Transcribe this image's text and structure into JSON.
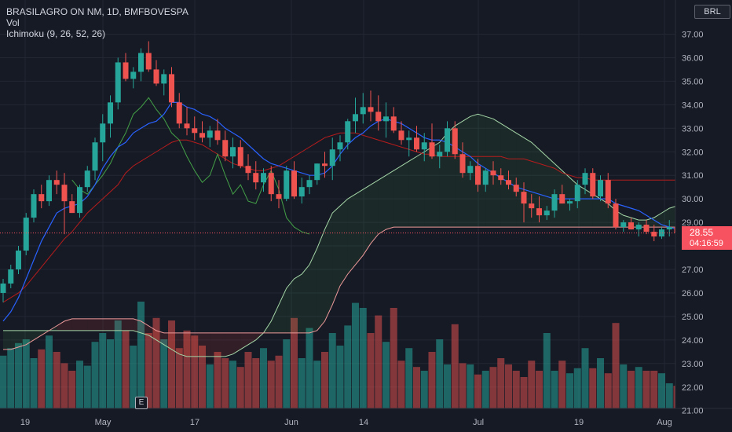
{
  "header": {
    "symbol_line": "BRASILAGRO ON NM, 1D, BMFBOVESPA",
    "indicators": [
      "Vol",
      "Ichimoku (9, 26, 52, 26)"
    ],
    "currency": "BRL"
  },
  "last_price": {
    "value": "28.55",
    "countdown": "04:16:59"
  },
  "earnings_marker": "E",
  "colors": {
    "background": "#161a25",
    "up": "#26a69a",
    "down": "#ef5350",
    "conversion": "#2962ff",
    "base": "#b71c1c",
    "lagging": "#43a047",
    "span_a": "#a5d6a7",
    "span_b": "#ef9a9a"
  },
  "chart_data": {
    "type": "candlestick",
    "y_axis": {
      "min": 21,
      "max": 38,
      "ticks": [
        "37.00",
        "36.00",
        "35.00",
        "34.00",
        "33.00",
        "32.00",
        "31.00",
        "30.00",
        "29.00",
        "28.00",
        "27.00",
        "26.00",
        "25.00",
        "24.00",
        "23.00",
        "22.00",
        "21.00"
      ]
    },
    "x_axis_labels": [
      "19",
      "May",
      "17",
      "Jun",
      "14",
      "Jul",
      "19",
      "Aug"
    ],
    "candles": [
      [
        26.0,
        26.6,
        25.6,
        26.4
      ],
      [
        26.4,
        27.2,
        26.2,
        27.0
      ],
      [
        27.0,
        28.0,
        26.8,
        27.8
      ],
      [
        27.8,
        29.4,
        27.6,
        29.2
      ],
      [
        29.2,
        30.4,
        29.0,
        30.2
      ],
      [
        30.2,
        30.6,
        29.6,
        29.9
      ],
      [
        29.9,
        31.0,
        29.7,
        30.8
      ],
      [
        30.8,
        31.2,
        30.2,
        30.6
      ],
      [
        30.6,
        31.1,
        28.5,
        29.9
      ],
      [
        29.9,
        30.2,
        29.4,
        29.4
      ],
      [
        29.4,
        30.6,
        29.2,
        30.5
      ],
      [
        30.5,
        31.4,
        30.3,
        31.2
      ],
      [
        31.2,
        32.6,
        30.8,
        32.4
      ],
      [
        32.4,
        33.6,
        31.6,
        33.2
      ],
      [
        33.2,
        34.4,
        32.6,
        34.1
      ],
      [
        34.1,
        36.0,
        33.8,
        35.8
      ],
      [
        35.8,
        36.2,
        35.0,
        35.1
      ],
      [
        35.1,
        35.6,
        34.7,
        35.4
      ],
      [
        35.4,
        36.4,
        35.0,
        36.2
      ],
      [
        36.2,
        36.7,
        35.4,
        35.5
      ],
      [
        35.5,
        35.9,
        34.8,
        34.9
      ],
      [
        34.9,
        35.5,
        34.4,
        35.3
      ],
      [
        35.3,
        35.6,
        33.9,
        34.1
      ],
      [
        34.1,
        34.5,
        33.0,
        33.2
      ],
      [
        33.2,
        33.9,
        32.7,
        33.0
      ],
      [
        33.0,
        33.5,
        32.5,
        32.8
      ],
      [
        32.8,
        33.3,
        32.4,
        32.6
      ],
      [
        32.6,
        33.1,
        32.2,
        32.9
      ],
      [
        32.9,
        33.4,
        32.3,
        32.5
      ],
      [
        32.5,
        32.9,
        31.6,
        31.8
      ],
      [
        31.8,
        32.6,
        31.3,
        32.2
      ],
      [
        32.2,
        32.5,
        31.3,
        31.4
      ],
      [
        31.4,
        31.9,
        30.8,
        31.1
      ],
      [
        31.1,
        31.6,
        30.4,
        30.7
      ],
      [
        30.7,
        31.3,
        30.3,
        31.1
      ],
      [
        31.1,
        31.4,
        29.9,
        30.2
      ],
      [
        30.2,
        30.8,
        29.6,
        30.0
      ],
      [
        30.0,
        31.4,
        29.9,
        31.2
      ],
      [
        31.2,
        31.6,
        30.0,
        30.1
      ],
      [
        30.1,
        30.9,
        29.8,
        30.5
      ],
      [
        30.5,
        31.0,
        30.2,
        30.8
      ],
      [
        30.8,
        31.5,
        30.6,
        31.5
      ],
      [
        31.5,
        32.0,
        30.9,
        31.4
      ],
      [
        31.4,
        32.6,
        30.8,
        32.1
      ],
      [
        32.1,
        32.7,
        31.6,
        32.4
      ],
      [
        32.4,
        33.4,
        32.1,
        33.3
      ],
      [
        33.3,
        34.3,
        32.8,
        33.6
      ],
      [
        33.6,
        34.5,
        33.2,
        33.9
      ],
      [
        33.9,
        34.6,
        33.3,
        33.7
      ],
      [
        33.7,
        34.4,
        32.9,
        33.3
      ],
      [
        33.3,
        34.1,
        32.6,
        33.5
      ],
      [
        33.5,
        33.9,
        32.8,
        32.9
      ],
      [
        32.9,
        33.3,
        32.3,
        32.5
      ],
      [
        32.5,
        32.9,
        31.8,
        32.6
      ],
      [
        32.6,
        33.1,
        32.0,
        32.1
      ],
      [
        32.1,
        32.8,
        31.6,
        32.4
      ],
      [
        32.4,
        33.2,
        31.7,
        31.8
      ],
      [
        31.8,
        32.3,
        31.3,
        32.0
      ],
      [
        32.0,
        33.3,
        31.8,
        33.0
      ],
      [
        33.0,
        33.3,
        31.7,
        31.9
      ],
      [
        31.9,
        32.4,
        30.9,
        31.1
      ],
      [
        31.1,
        31.6,
        30.8,
        31.4
      ],
      [
        31.4,
        31.7,
        30.3,
        30.6
      ],
      [
        30.6,
        31.3,
        30.3,
        31.2
      ],
      [
        31.2,
        31.6,
        30.6,
        31.0
      ],
      [
        31.0,
        31.3,
        30.6,
        30.8
      ],
      [
        30.8,
        31.2,
        30.4,
        30.6
      ],
      [
        30.6,
        30.9,
        30.1,
        30.3
      ],
      [
        30.3,
        30.7,
        29.0,
        29.8
      ],
      [
        29.8,
        30.2,
        29.2,
        29.6
      ],
      [
        29.6,
        30.1,
        29.0,
        29.3
      ],
      [
        29.3,
        29.7,
        29.1,
        29.5
      ],
      [
        29.5,
        30.4,
        29.2,
        30.2
      ],
      [
        30.2,
        30.6,
        29.8,
        29.8
      ],
      [
        29.8,
        30.0,
        29.5,
        29.9
      ],
      [
        29.9,
        30.8,
        29.6,
        30.6
      ],
      [
        30.6,
        31.3,
        30.2,
        31.1
      ],
      [
        31.1,
        31.3,
        30.0,
        30.1
      ],
      [
        30.1,
        31.0,
        29.9,
        30.8
      ],
      [
        30.8,
        31.1,
        29.6,
        29.8
      ],
      [
        29.8,
        30.0,
        28.7,
        28.8
      ],
      [
        28.8,
        29.1,
        28.6,
        29.0
      ],
      [
        29.0,
        29.2,
        28.7,
        28.7
      ],
      [
        28.7,
        29.0,
        28.4,
        28.9
      ],
      [
        28.9,
        29.1,
        28.5,
        28.6
      ],
      [
        28.6,
        28.9,
        28.2,
        28.4
      ],
      [
        28.4,
        28.8,
        28.3,
        28.7
      ],
      [
        28.7,
        29.1,
        28.4,
        28.8
      ],
      [
        28.8,
        28.9,
        28.5,
        28.55
      ]
    ],
    "conversion": [
      24.8,
      25.2,
      25.8,
      26.6,
      27.4,
      28.2,
      28.8,
      29.4,
      29.6,
      29.7,
      29.8,
      30.1,
      30.6,
      31.3,
      31.8,
      32.2,
      32.4,
      32.8,
      33.0,
      33.2,
      33.3,
      33.6,
      34.1,
      34.1,
      33.9,
      33.8,
      33.6,
      33.5,
      33.3,
      33.0,
      32.8,
      32.6,
      32.3,
      32.0,
      31.7,
      31.5,
      31.4,
      31.3,
      31.2,
      31.1,
      31.0,
      31.0,
      31.1,
      31.4,
      31.9,
      32.3,
      32.6,
      32.8,
      33.1,
      33.3,
      33.4,
      33.3,
      33.2,
      33.0,
      32.8,
      32.6,
      32.5,
      32.5,
      32.4,
      32.2,
      32.0,
      31.8,
      31.5,
      31.3,
      31.1,
      30.9,
      30.7,
      30.5,
      30.4,
      30.3,
      30.2,
      30.1,
      30.0,
      30.0,
      30.0,
      30.0,
      30.0,
      30.0,
      30.0,
      30.0,
      29.8,
      29.7,
      29.6,
      29.5,
      29.3,
      29.1,
      28.9,
      28.8,
      28.7
    ],
    "base": [
      25.6,
      25.8,
      26.0,
      26.3,
      26.7,
      27.1,
      27.5,
      27.9,
      28.3,
      28.6,
      29.0,
      29.4,
      29.7,
      30.0,
      30.3,
      30.6,
      31.1,
      31.4,
      31.6,
      31.8,
      32.0,
      32.2,
      32.4,
      32.5,
      32.5,
      32.4,
      32.3,
      32.1,
      31.9,
      31.7,
      31.5,
      31.4,
      31.3,
      31.2,
      31.2,
      31.3,
      31.4,
      31.6,
      31.8,
      32.0,
      32.2,
      32.4,
      32.6,
      32.7,
      32.8,
      32.8,
      32.8,
      32.7,
      32.6,
      32.5,
      32.4,
      32.3,
      32.2,
      32.1,
      32.0,
      31.9,
      31.9,
      31.8,
      31.8,
      31.8,
      31.8,
      31.8,
      31.8,
      31.8,
      31.8,
      31.8,
      31.7,
      31.7,
      31.7,
      31.6,
      31.5,
      31.4,
      31.3,
      31.1,
      31.0,
      30.9,
      30.9,
      30.8,
      30.8,
      30.8,
      30.8,
      30.8,
      30.8,
      30.8,
      30.8,
      30.8,
      30.8,
      30.8,
      30.8
    ],
    "lagging": [
      30.8,
      30.4,
      30.2,
      30.6,
      31.0,
      31.5,
      32.2,
      32.8,
      33.6,
      33.9,
      34.3,
      33.8,
      33.4,
      32.8,
      32.5,
      31.8,
      31.2,
      30.7,
      31.0,
      31.9,
      31.0,
      30.2,
      30.6,
      29.9,
      29.8,
      30.6,
      31.2,
      30.4,
      29.2,
      28.8,
      28.6,
      28.5
    ],
    "span_a": [
      24.4,
      24.4,
      24.4,
      24.4,
      24.4,
      24.4,
      24.4,
      24.4,
      24.4,
      24.4,
      24.4,
      24.4,
      24.4,
      24.4,
      24.4,
      24.4,
      24.4,
      24.4,
      24.3,
      24.2,
      24.0,
      23.8,
      23.6,
      23.4,
      23.3,
      23.3,
      23.3,
      23.3,
      23.3,
      23.3,
      23.4,
      23.6,
      23.8,
      24.0,
      24.3,
      24.8,
      25.5,
      26.2,
      26.6,
      26.8,
      27.2,
      27.9,
      28.7,
      29.4,
      29.7,
      30.0,
      30.2,
      30.4,
      30.6,
      30.8,
      31.0,
      31.2,
      31.4,
      31.6,
      31.8,
      32.0,
      32.2,
      32.4,
      32.8,
      33.1,
      33.3,
      33.5,
      33.6,
      33.5,
      33.4,
      33.2,
      33.0,
      32.8,
      32.6,
      32.4,
      32.1,
      31.8,
      31.5,
      31.2,
      30.9,
      30.6,
      30.4,
      30.2,
      30.0,
      29.8,
      29.5,
      29.3,
      29.2,
      29.1,
      29.1,
      29.2,
      29.4,
      29.6,
      29.7,
      29.8,
      30.0,
      30.2,
      30.5,
      30.8,
      31.0,
      31.1,
      31.2,
      31.3,
      31.5,
      31.6,
      31.8,
      31.9,
      32.0,
      32.0,
      32.0,
      31.9,
      31.8,
      31.7,
      31.6,
      31.4,
      31.2,
      31.0,
      30.9,
      30.8
    ],
    "span_b": [
      23.6,
      23.6,
      23.7,
      23.8,
      24.0,
      24.2,
      24.4,
      24.6,
      24.8,
      24.9,
      24.9,
      24.9,
      24.9,
      24.9,
      24.9,
      24.9,
      24.9,
      24.9,
      24.8,
      24.6,
      24.4,
      24.3,
      24.3,
      24.3,
      24.3,
      24.3,
      24.3,
      24.3,
      24.3,
      24.3,
      24.3,
      24.3,
      24.3,
      24.3,
      24.3,
      24.3,
      24.3,
      24.3,
      24.3,
      24.3,
      24.3,
      24.4,
      24.8,
      25.5,
      26.3,
      26.8,
      27.2,
      27.6,
      28.1,
      28.5,
      28.7,
      28.8,
      28.8,
      28.8,
      28.8,
      28.8,
      28.8,
      28.8,
      28.8,
      28.8,
      28.8,
      28.8,
      28.8,
      28.8,
      28.8,
      28.8,
      28.8,
      28.8,
      28.8,
      28.8,
      28.8,
      28.8,
      28.8,
      28.8,
      28.8,
      28.8,
      28.8,
      28.8,
      28.8,
      28.8,
      28.8,
      28.8,
      28.8,
      28.8,
      28.8,
      28.8,
      28.8,
      28.8,
      28.8,
      28.8,
      28.9,
      29.0,
      29.0,
      29.0,
      29.1,
      29.1,
      29.2,
      29.2,
      29.3,
      29.4,
      29.5,
      29.6,
      29.7,
      29.8,
      29.9,
      30.0,
      30.1,
      30.2,
      30.3,
      30.5,
      30.6,
      30.7,
      30.8,
      30.9
    ],
    "volume": [
      0.42,
      0.48,
      0.52,
      0.55,
      0.4,
      0.47,
      0.58,
      0.45,
      0.36,
      0.3,
      0.38,
      0.34,
      0.53,
      0.6,
      0.55,
      0.7,
      0.62,
      0.5,
      0.85,
      0.6,
      0.72,
      0.55,
      0.7,
      0.48,
      0.62,
      0.58,
      0.5,
      0.35,
      0.45,
      0.4,
      0.38,
      0.33,
      0.45,
      0.4,
      0.48,
      0.38,
      0.42,
      0.55,
      0.72,
      0.4,
      0.64,
      0.38,
      0.45,
      0.6,
      0.5,
      0.66,
      0.84,
      0.8,
      0.6,
      0.74,
      0.53,
      0.8,
      0.38,
      0.48,
      0.33,
      0.3,
      0.45,
      0.55,
      0.35,
      0.67,
      0.36,
      0.35,
      0.27,
      0.3,
      0.33,
      0.4,
      0.35,
      0.3,
      0.25,
      0.38,
      0.3,
      0.6,
      0.3,
      0.38,
      0.28,
      0.32,
      0.48,
      0.32,
      0.4,
      0.28,
      0.68,
      0.35,
      0.3,
      0.33,
      0.3,
      0.3,
      0.28,
      0.2,
      0.18
    ],
    "last_price": 28.55
  }
}
